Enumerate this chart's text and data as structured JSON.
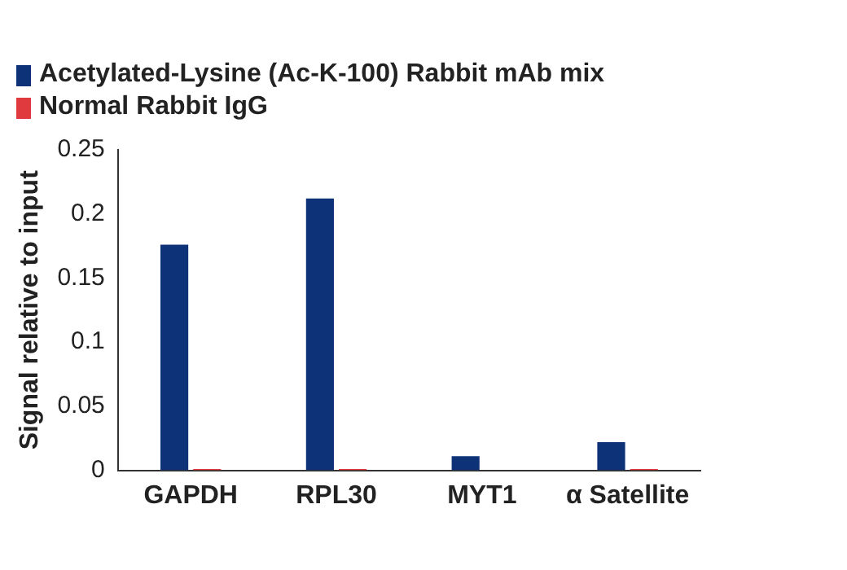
{
  "chart_data": {
    "type": "bar",
    "ylabel": "Signal relative to input",
    "categories": [
      "GAPDH",
      "RPL30",
      "MYT1",
      "α Satellite"
    ],
    "series": [
      {
        "name": "Acetylated-Lysine (Ac-K-100) Rabbit mAb mix",
        "color": "#0d3278",
        "values": [
          0.176,
          0.212,
          0.011,
          0.022
        ]
      },
      {
        "name": "Normal Rabbit IgG",
        "color": "#e0393e",
        "values": [
          0.001,
          0.001,
          0,
          0.001
        ]
      }
    ],
    "ylim": [
      0,
      0.25
    ],
    "yticks": [
      0,
      0.05,
      0.1,
      0.15,
      0.2,
      0.25
    ],
    "grid": false,
    "legend": "top left"
  }
}
